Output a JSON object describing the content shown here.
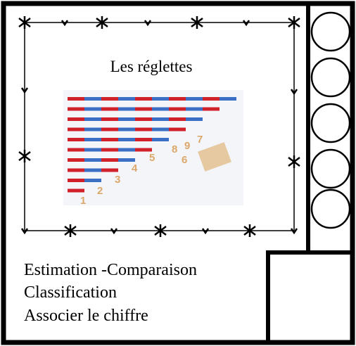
{
  "card": {
    "title": "Les réglettes",
    "photo_digits": [
      "1",
      "2",
      "3",
      "4",
      "5",
      "8",
      "9",
      "7",
      "6"
    ],
    "lines": [
      "Estimation -Comparaison",
      "Classification",
      "Associer le chiffre"
    ]
  }
}
